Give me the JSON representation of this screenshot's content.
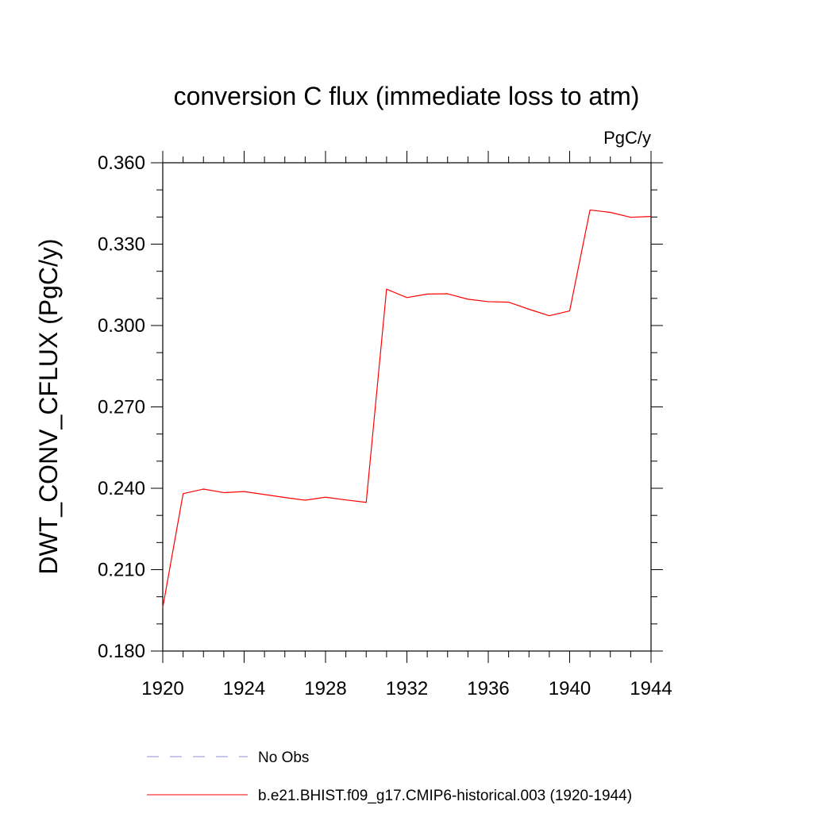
{
  "chart_data": {
    "type": "line",
    "title": "conversion C flux (immediate loss to atm)",
    "units": "PgC/y",
    "xlabel": "",
    "ylabel": "DWT_CONV_CFLUX  (PgC/y)",
    "xlim": [
      1920,
      1944
    ],
    "ylim": [
      0.18,
      0.36
    ],
    "x_ticks": [
      1920,
      1924,
      1928,
      1932,
      1936,
      1940,
      1944
    ],
    "x_tick_labels": [
      "1920",
      "1924",
      "1928",
      "1932",
      "1936",
      "1940",
      "1944"
    ],
    "y_ticks": [
      0.18,
      0.21,
      0.24,
      0.27,
      0.3,
      0.33,
      0.36
    ],
    "y_tick_labels": [
      "0.180",
      "0.210",
      "0.240",
      "0.270",
      "0.300",
      "0.330",
      "0.360"
    ],
    "grid": false,
    "legend_placement": "bottom",
    "legend": [
      {
        "name": "No Obs",
        "style": "dashed",
        "color": "#8f8fd8"
      },
      {
        "name": "b.e21.BHIST.f09_g17.CMIP6-historical.003 (1920-1944)",
        "style": "solid",
        "color": "#ff0000"
      }
    ],
    "series": [
      {
        "name": "b.e21.BHIST.f09_g17.CMIP6-historical.003 (1920-1944)",
        "color": "#ff0000",
        "x": [
          1920,
          1921,
          1922,
          1923,
          1924,
          1925,
          1926,
          1927,
          1928,
          1929,
          1930,
          1931,
          1932,
          1933,
          1934,
          1935,
          1936,
          1937,
          1938,
          1939,
          1940,
          1941,
          1942,
          1943,
          1944
        ],
        "y": [
          0.196,
          0.238,
          0.2397,
          0.2384,
          0.2388,
          0.2377,
          0.2366,
          0.2356,
          0.2367,
          0.2357,
          0.2348,
          0.3134,
          0.3103,
          0.3116,
          0.3117,
          0.3097,
          0.3088,
          0.3086,
          0.306,
          0.3036,
          0.3054,
          0.3426,
          0.3417,
          0.3399,
          0.3402
        ]
      }
    ]
  }
}
